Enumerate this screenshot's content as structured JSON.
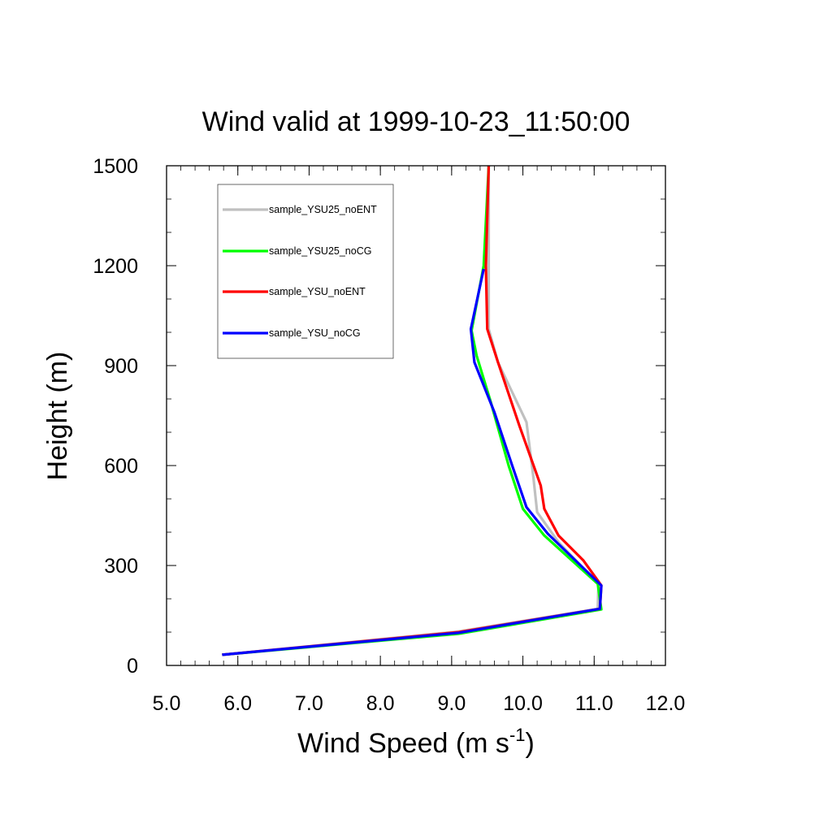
{
  "chart_data": {
    "type": "line",
    "title": "Wind valid at 1999-10-23_11:50:00",
    "xlabel": "Wind Speed (m s",
    "xlabel_sup": "-1",
    "xlabel_end": ")",
    "ylabel": "Height (m)",
    "xlim": [
      5.0,
      12.0
    ],
    "ylim": [
      0,
      1500
    ],
    "x_ticks": [
      "5.0",
      "6.0",
      "7.0",
      "8.0",
      "9.0",
      "10.0",
      "11.0",
      "12.0"
    ],
    "y_ticks": [
      "0",
      "300",
      "600",
      "900",
      "1200",
      "1500"
    ],
    "legend_position": "top-left",
    "series": [
      {
        "name": "sample_YSU25_noENT",
        "color": "#c0c0c0",
        "points": [
          [
            5.78,
            32
          ],
          [
            9.1,
            102
          ],
          [
            11.05,
            170
          ],
          [
            11.06,
            245
          ],
          [
            10.5,
            370
          ],
          [
            10.2,
            460
          ],
          [
            10.15,
            560
          ],
          [
            10.05,
            730
          ],
          [
            9.65,
            910
          ],
          [
            9.52,
            1010
          ],
          [
            9.52,
            1200
          ],
          [
            9.52,
            1500
          ]
        ]
      },
      {
        "name": "sample_YSU25_noCG",
        "color": "#00ff00",
        "points": [
          [
            5.78,
            32
          ],
          [
            9.1,
            95
          ],
          [
            11.1,
            168
          ],
          [
            11.05,
            245
          ],
          [
            10.3,
            390
          ],
          [
            10.0,
            470
          ],
          [
            9.8,
            600
          ],
          [
            9.55,
            790
          ],
          [
            9.35,
            930
          ],
          [
            9.28,
            1005
          ],
          [
            9.45,
            1200
          ],
          [
            9.52,
            1500
          ]
        ]
      },
      {
        "name": "sample_YSU_noENT",
        "color": "#ff0000",
        "points": [
          [
            5.78,
            32
          ],
          [
            9.1,
            100
          ],
          [
            11.08,
            170
          ],
          [
            11.1,
            240
          ],
          [
            10.85,
            315
          ],
          [
            10.5,
            390
          ],
          [
            10.3,
            470
          ],
          [
            10.25,
            540
          ],
          [
            9.95,
            720
          ],
          [
            9.65,
            910
          ],
          [
            9.5,
            1010
          ],
          [
            9.48,
            1200
          ],
          [
            9.52,
            1500
          ]
        ]
      },
      {
        "name": "sample_YSU_noCG",
        "color": "#0000ff",
        "points": [
          [
            5.78,
            32
          ],
          [
            9.1,
            98
          ],
          [
            11.08,
            170
          ],
          [
            11.1,
            240
          ],
          [
            10.35,
            395
          ],
          [
            10.05,
            475
          ],
          [
            9.85,
            600
          ],
          [
            9.6,
            760
          ],
          [
            9.32,
            910
          ],
          [
            9.27,
            1010
          ],
          [
            9.45,
            1190
          ]
        ]
      }
    ]
  }
}
